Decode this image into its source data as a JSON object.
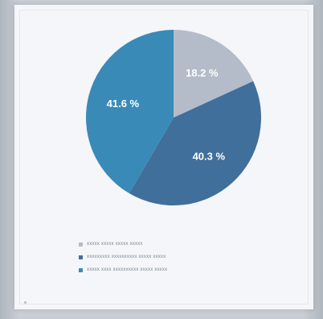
{
  "chart_data": {
    "type": "pie",
    "title": "",
    "slices": [
      {
        "label": "",
        "value": 18.2,
        "display": "18.2 %",
        "color": "#b3bcc8"
      },
      {
        "label": "",
        "value": 40.3,
        "display": "40.3 %",
        "color": "#3f6f9a"
      },
      {
        "label": "",
        "value": 41.6,
        "display": "41.6 %",
        "color": "#3a8ab8"
      }
    ],
    "start_angle_deg": 0,
    "direction": "clockwise",
    "legend_placement": "bottom"
  },
  "legend": {
    "items": [
      {
        "text": "xxxxx xxxxx xxxxx xxxxx",
        "color": "#b3bcc8"
      },
      {
        "text": "xxxxxxxxx xxxxxxxxxx xxxxx xxxxx",
        "color": "#3f6f9a"
      },
      {
        "text": "xxxxx xxxx xxxxxxxxxx xxxxx xxxxx",
        "color": "#3a8ab8"
      }
    ]
  }
}
